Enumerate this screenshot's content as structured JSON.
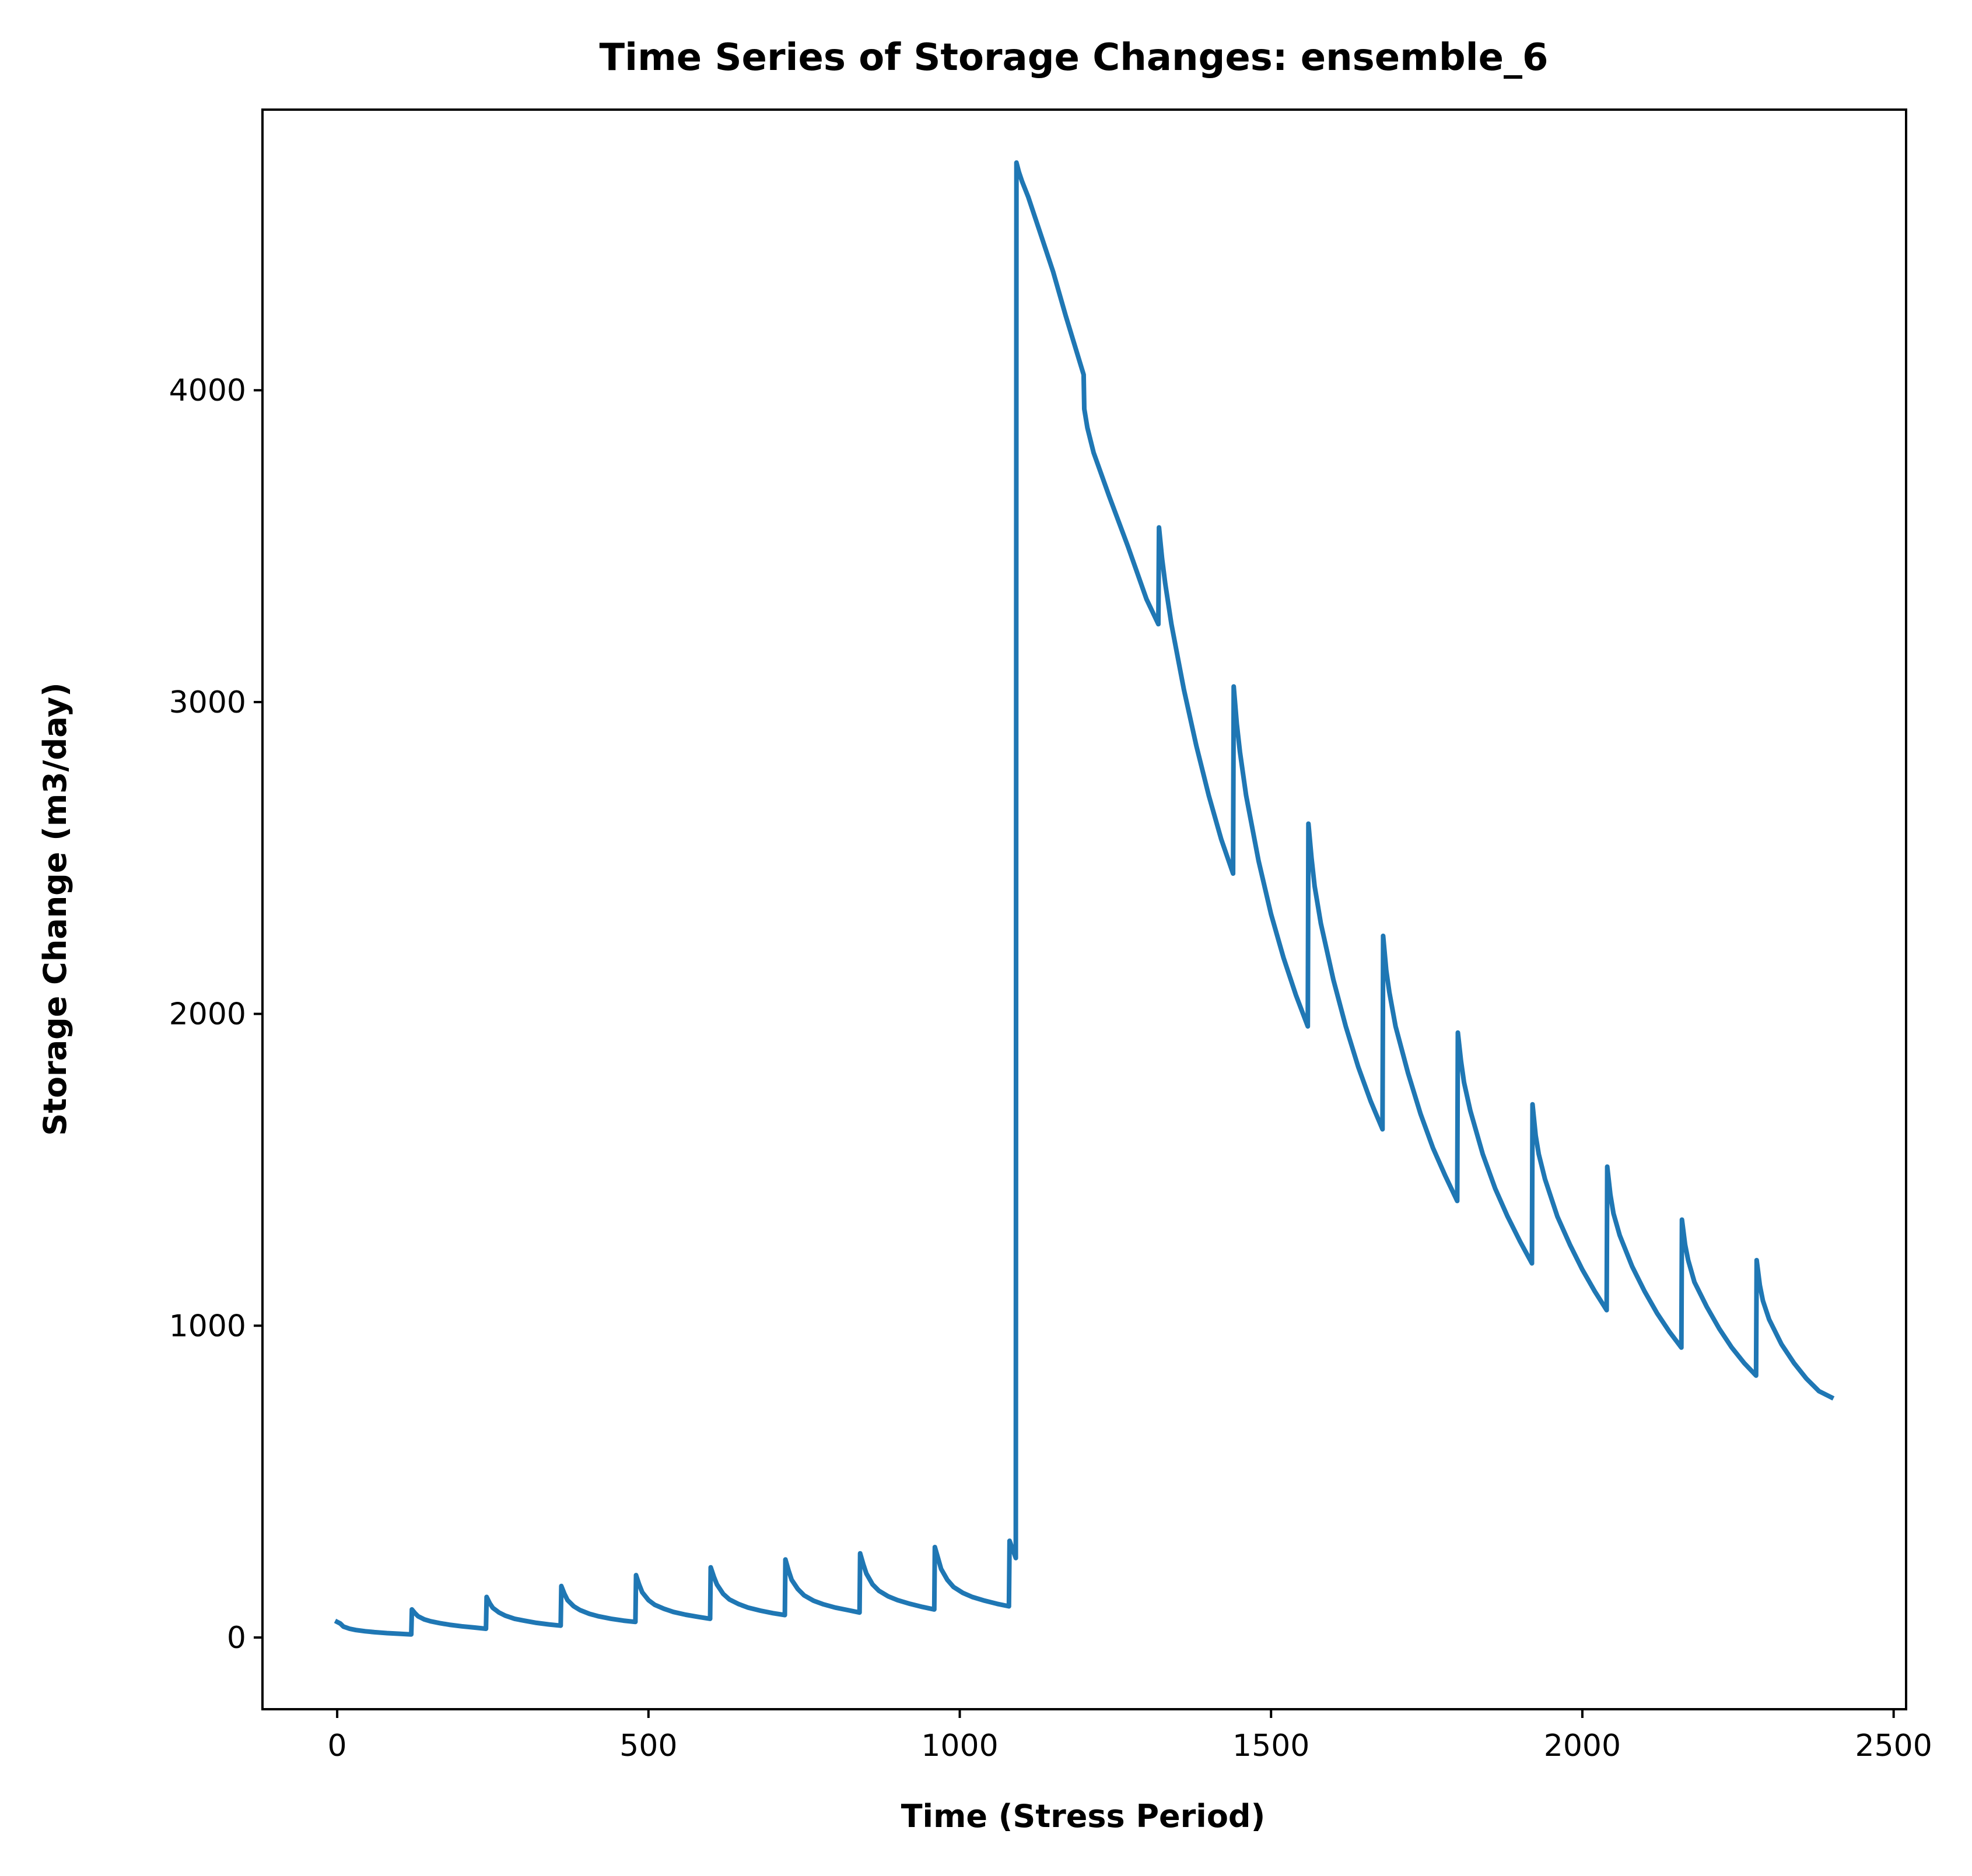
{
  "chart_data": {
    "type": "line",
    "title": "Time Series of Storage Changes: ensemble_6",
    "xlabel": "Time (Stress Period)",
    "ylabel": "Storage Change (m3/day)",
    "xlim": [
      -120,
      2520
    ],
    "ylim": [
      -230,
      4900
    ],
    "xticks": [
      0,
      500,
      1000,
      1500,
      2000,
      2500
    ],
    "yticks": [
      0,
      1000,
      2000,
      3000,
      4000
    ],
    "grid": false,
    "legend": "none",
    "series_color": "#1f77b4",
    "series": [
      {
        "x": [
          0,
          5,
          10,
          20,
          30,
          45,
          60,
          80,
          100,
          119,
          120,
          125,
          130,
          140,
          150,
          165,
          180,
          200,
          220,
          239,
          240,
          245,
          250,
          260,
          270,
          285,
          300,
          320,
          340,
          359,
          360,
          365,
          370,
          380,
          390,
          405,
          420,
          440,
          460,
          479,
          480,
          485,
          490,
          500,
          510,
          525,
          540,
          560,
          580,
          599,
          600,
          605,
          610,
          620,
          630,
          645,
          660,
          680,
          700,
          719,
          720,
          725,
          730,
          740,
          750,
          765,
          780,
          800,
          820,
          839,
          840,
          845,
          850,
          860,
          870,
          885,
          900,
          920,
          940,
          959,
          960,
          965,
          970,
          980,
          990,
          1005,
          1020,
          1040,
          1060,
          1079,
          1080,
          1090,
          1091,
          1095,
          1100,
          1110,
          1130,
          1150,
          1170,
          1199,
          1200,
          1205,
          1215,
          1240,
          1270,
          1300,
          1319,
          1320,
          1325,
          1330,
          1340,
          1360,
          1380,
          1400,
          1420,
          1439,
          1440,
          1445,
          1450,
          1460,
          1480,
          1500,
          1520,
          1540,
          1559,
          1560,
          1565,
          1570,
          1580,
          1600,
          1620,
          1640,
          1660,
          1679,
          1680,
          1685,
          1690,
          1700,
          1720,
          1740,
          1760,
          1780,
          1799,
          1800,
          1805,
          1810,
          1820,
          1840,
          1860,
          1880,
          1900,
          1919,
          1920,
          1925,
          1930,
          1940,
          1960,
          1980,
          2000,
          2020,
          2039,
          2040,
          2045,
          2050,
          2060,
          2080,
          2100,
          2120,
          2140,
          2159,
          2160,
          2165,
          2170,
          2180,
          2200,
          2220,
          2240,
          2260,
          2279,
          2280,
          2285,
          2290,
          2300,
          2320,
          2340,
          2360,
          2380,
          2400
        ],
        "y": [
          50,
          45,
          35,
          28,
          24,
          20,
          17,
          14,
          12,
          10,
          90,
          78,
          68,
          58,
          52,
          46,
          41,
          36,
          32,
          28,
          130,
          110,
          95,
          80,
          70,
          60,
          54,
          47,
          42,
          38,
          165,
          140,
          120,
          100,
          88,
          76,
          68,
          60,
          54,
          50,
          200,
          170,
          145,
          120,
          105,
          92,
          82,
          73,
          66,
          60,
          225,
          195,
          170,
          140,
          122,
          107,
          96,
          86,
          78,
          72,
          250,
          215,
          185,
          155,
          135,
          118,
          107,
          96,
          88,
          80,
          270,
          235,
          205,
          170,
          150,
          132,
          120,
          108,
          98,
          90,
          290,
          255,
          220,
          185,
          162,
          143,
          130,
          118,
          108,
          100,
          310,
          255,
          4730,
          4700,
          4670,
          4620,
          4500,
          4380,
          4240,
          4050,
          3940,
          3880,
          3800,
          3660,
          3500,
          3330,
          3250,
          3560,
          3460,
          3380,
          3250,
          3040,
          2860,
          2700,
          2560,
          2450,
          3050,
          2930,
          2840,
          2700,
          2490,
          2320,
          2180,
          2060,
          1960,
          2610,
          2500,
          2410,
          2290,
          2110,
          1960,
          1830,
          1720,
          1630,
          2250,
          2140,
          2070,
          1960,
          1810,
          1680,
          1570,
          1480,
          1400,
          1940,
          1850,
          1780,
          1690,
          1550,
          1440,
          1350,
          1270,
          1200,
          1710,
          1610,
          1550,
          1470,
          1350,
          1260,
          1180,
          1110,
          1050,
          1510,
          1420,
          1360,
          1290,
          1190,
          1110,
          1040,
          980,
          930,
          1340,
          1260,
          1210,
          1140,
          1060,
          990,
          930,
          880,
          840,
          1210,
          1130,
          1080,
          1020,
          940,
          880,
          830,
          790,
          770
        ]
      }
    ]
  }
}
